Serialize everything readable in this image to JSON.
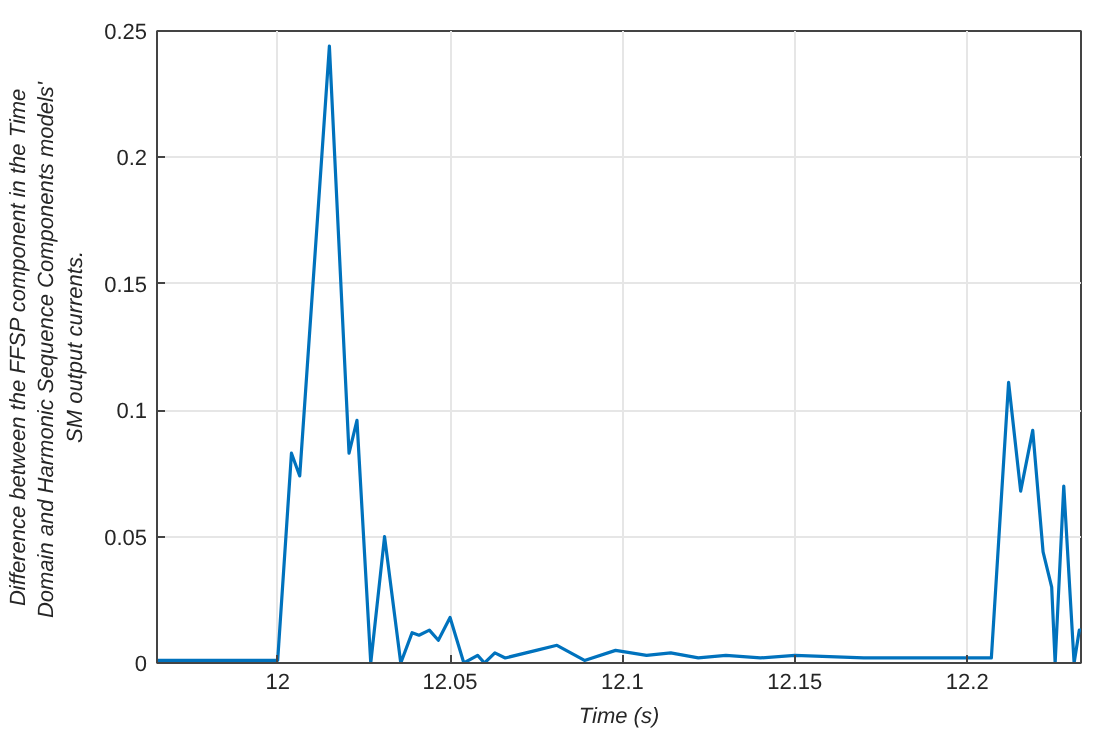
{
  "chart_data": {
    "type": "line",
    "xlabel": "Time (s)",
    "ylabel": "Difference between the FFSP component in the Time Domain and Harmonic Sequence  Components models' SM output currents.",
    "x": [
      11.965,
      12.0,
      12.004,
      12.0064,
      12.015,
      12.0207,
      12.023,
      12.027,
      12.031,
      12.0357,
      12.039,
      12.041,
      12.044,
      12.0466,
      12.05,
      12.054,
      12.058,
      12.06,
      12.063,
      12.066,
      12.075,
      12.081,
      12.089,
      12.098,
      12.107,
      12.114,
      12.122,
      12.13,
      12.14,
      12.15,
      12.17,
      12.19,
      12.207,
      12.212,
      12.2155,
      12.219,
      12.222,
      12.2245,
      12.2255,
      12.228,
      12.231,
      12.2325,
      12.233
    ],
    "series": [
      {
        "color": "#0072bd",
        "values": [
          0.001,
          0.001,
          0.083,
          0.074,
          0.244,
          0.083,
          0.096,
          0.0,
          0.05,
          0.0,
          0.012,
          0.011,
          0.013,
          0.009,
          0.018,
          0.0,
          0.003,
          0.0,
          0.004,
          0.002,
          0.005,
          0.007,
          0.001,
          0.005,
          0.003,
          0.004,
          0.002,
          0.003,
          0.002,
          0.003,
          0.002,
          0.002,
          0.002,
          0.111,
          0.068,
          0.092,
          0.044,
          0.03,
          0.0,
          0.07,
          0.0,
          0.013,
          0.013
        ]
      }
    ],
    "xlim": [
      11.965,
      12.233
    ],
    "ylim": [
      0,
      0.25
    ],
    "xticks": [
      12,
      12.05,
      12.1,
      12.15,
      12.2
    ],
    "yticks": [
      0,
      0.05,
      0.1,
      0.15,
      0.2,
      0.25
    ],
    "grid": true,
    "marker": "none",
    "line_style": "solid"
  }
}
